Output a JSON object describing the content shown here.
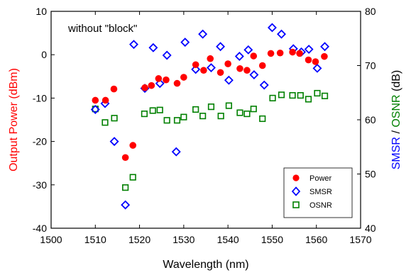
{
  "chart_data": {
    "type": "scatter",
    "annotation": "without \"block\"",
    "xlabel": "Wavelength (nm)",
    "ylabel_left": "Output Power (dBm)",
    "ylabel_right_parts": [
      {
        "text": "SMSR",
        "color": "#0000ff"
      },
      {
        "text": " / ",
        "color": "#000000"
      },
      {
        "text": "OSNR",
        "color": "#008000"
      },
      {
        "text": " (dB)",
        "color": "#000000"
      }
    ],
    "xlim": [
      1500,
      1570
    ],
    "ylim_left": [
      -40,
      10
    ],
    "ylim_right": [
      40,
      80
    ],
    "xticks": [
      1500,
      1510,
      1520,
      1530,
      1540,
      1550,
      1560,
      1570
    ],
    "yticks_left": [
      -40,
      -30,
      -20,
      -10,
      0,
      10
    ],
    "yticks_right": [
      40,
      50,
      60,
      70,
      80
    ],
    "legend_position": "bottom-right",
    "series": [
      {
        "name": "Power",
        "axis": "left",
        "marker": "filled-circle",
        "color": "#ff0000",
        "points": [
          [
            1510,
            -10.5
          ],
          [
            1512.3,
            -10.5
          ],
          [
            1514.2,
            -7.9
          ],
          [
            1516.8,
            -23.7
          ],
          [
            1518.5,
            -20.9
          ],
          [
            1521.2,
            -7.6
          ],
          [
            1522.7,
            -7.1
          ],
          [
            1524.3,
            -5.5
          ],
          [
            1526,
            -5.8
          ],
          [
            1528.5,
            -6.6
          ],
          [
            1530,
            -5.2
          ],
          [
            1532.7,
            -2.3
          ],
          [
            1534.5,
            -3.6
          ],
          [
            1536,
            -0.9
          ],
          [
            1538.3,
            -4.1
          ],
          [
            1540,
            -2.1
          ],
          [
            1542.7,
            -3.2
          ],
          [
            1544.3,
            -3.6
          ],
          [
            1545.8,
            -0.3
          ],
          [
            1547.8,
            -2.5
          ],
          [
            1549.7,
            0.3
          ],
          [
            1551.8,
            0.4
          ],
          [
            1554.6,
            0.6
          ],
          [
            1556.2,
            0.3
          ],
          [
            1558.2,
            -1.2
          ],
          [
            1559.8,
            -1.6
          ],
          [
            1561.8,
            -0.4
          ]
        ]
      },
      {
        "name": "SMSR",
        "axis": "right",
        "marker": "open-diamond",
        "color": "#0000ff",
        "points": [
          [
            1510,
            61.9
          ],
          [
            1512.2,
            63
          ],
          [
            1514.3,
            56
          ],
          [
            1516.8,
            44.3
          ],
          [
            1518.7,
            73.9
          ],
          [
            1521.2,
            65.8
          ],
          [
            1523.1,
            73.3
          ],
          [
            1524.6,
            66.7
          ],
          [
            1526.2,
            71.9
          ],
          [
            1528.3,
            54.1
          ],
          [
            1530.3,
            74.3
          ],
          [
            1532.7,
            69.3
          ],
          [
            1534.3,
            75.8
          ],
          [
            1536.2,
            69.6
          ],
          [
            1538.3,
            73.5
          ],
          [
            1540.2,
            67.3
          ],
          [
            1542.6,
            71.7
          ],
          [
            1544.6,
            72.9
          ],
          [
            1545.9,
            68.3
          ],
          [
            1548.2,
            66.4
          ],
          [
            1550,
            77
          ],
          [
            1552.1,
            75.8
          ],
          [
            1554.8,
            73.1
          ],
          [
            1556.6,
            72.5
          ],
          [
            1558.3,
            73
          ],
          [
            1560.2,
            69.5
          ],
          [
            1561.9,
            73.5
          ]
        ]
      },
      {
        "name": "OSNR",
        "axis": "right",
        "marker": "open-square",
        "color": "#008000",
        "points": [
          [
            1510,
            62
          ],
          [
            1512.2,
            59.5
          ],
          [
            1514.3,
            60.3
          ],
          [
            1516.8,
            47.5
          ],
          [
            1518.5,
            49.4
          ],
          [
            1521.1,
            61.1
          ],
          [
            1523,
            61.7
          ],
          [
            1524.6,
            61.8
          ],
          [
            1526.2,
            59.9
          ],
          [
            1528.5,
            59.9
          ],
          [
            1530,
            60.5
          ],
          [
            1532.7,
            61.9
          ],
          [
            1534.3,
            60.7
          ],
          [
            1536.2,
            62.4
          ],
          [
            1538.4,
            60.7
          ],
          [
            1540.2,
            62.6
          ],
          [
            1542.7,
            61.3
          ],
          [
            1544.3,
            61.1
          ],
          [
            1545.8,
            62
          ],
          [
            1547.8,
            60.2
          ],
          [
            1550.1,
            64
          ],
          [
            1552.1,
            64.6
          ],
          [
            1554.6,
            64.5
          ],
          [
            1556.4,
            64.5
          ],
          [
            1558.2,
            63.8
          ],
          [
            1560.2,
            64.9
          ],
          [
            1561.9,
            64.4
          ]
        ]
      }
    ]
  }
}
